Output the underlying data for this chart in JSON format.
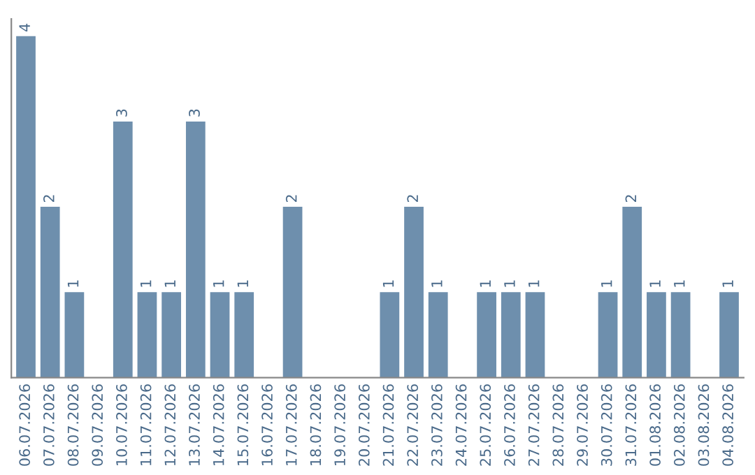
{
  "chart_data": {
    "type": "bar",
    "categories": [
      "06.07.2026",
      "07.07.2026",
      "08.07.2026",
      "09.07.2026",
      "10.07.2026",
      "11.07.2026",
      "12.07.2026",
      "13.07.2026",
      "14.07.2026",
      "15.07.2026",
      "16.07.2026",
      "17.07.2026",
      "18.07.2026",
      "19.07.2026",
      "20.07.2026",
      "21.07.2026",
      "22.07.2026",
      "23.07.2026",
      "24.07.2026",
      "25.07.2026",
      "26.07.2026",
      "27.07.2026",
      "28.07.2026",
      "29.07.2026",
      "30.07.2026",
      "31.07.2026",
      "01.08.2026",
      "02.08.2026",
      "03.08.2026",
      "04.08.2026"
    ],
    "values": [
      4,
      2,
      1,
      0,
      3,
      1,
      1,
      3,
      1,
      1,
      0,
      2,
      0,
      0,
      0,
      1,
      2,
      1,
      0,
      1,
      1,
      1,
      0,
      0,
      1,
      2,
      1,
      1,
      0,
      1
    ],
    "value_labels": [
      "4",
      "2",
      "1",
      null,
      "3",
      "1",
      "1",
      "3",
      "1",
      "1",
      null,
      "2",
      null,
      null,
      null,
      "1",
      "2",
      "1",
      null,
      "1",
      "1",
      "1",
      null,
      null,
      "1",
      "2",
      "1",
      "1",
      null,
      "1"
    ],
    "color": "#6e8fad",
    "tick_labels": "x",
    "grid": false
  }
}
